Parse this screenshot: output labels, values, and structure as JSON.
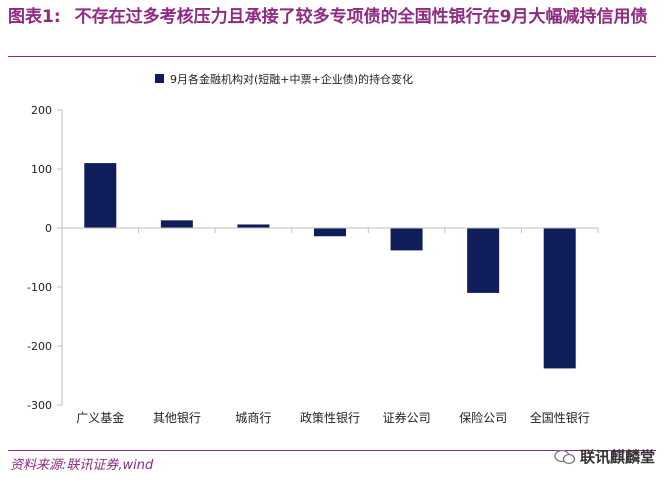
{
  "title": {
    "figure": "图表1:",
    "text": "不存在过多考核压力且承接了较多专项债的全国性银行在9月大幅减持信用债"
  },
  "source": "资料来源:联讯证券,wind",
  "watermark": "联讯麒麟堂",
  "colors": {
    "bar": "#0f1e5a",
    "accent": "#8e2a83",
    "axis": "#bfbfbf"
  },
  "chart_data": {
    "type": "bar",
    "categories": [
      "广义基金",
      "其他银行",
      "城商行",
      "政策性银行",
      "证券公司",
      "保险公司",
      "全国性银行"
    ],
    "series": [
      {
        "name": "9月各金融机构对(短融+中票+企业债)的持仓变化",
        "values": [
          110,
          13,
          6,
          -14,
          -38,
          -110,
          -238
        ]
      }
    ],
    "ylim": [
      -300,
      200
    ],
    "yticks": [
      200,
      100,
      0,
      -100,
      -200,
      -300
    ],
    "legend": "top",
    "grid": false
  }
}
